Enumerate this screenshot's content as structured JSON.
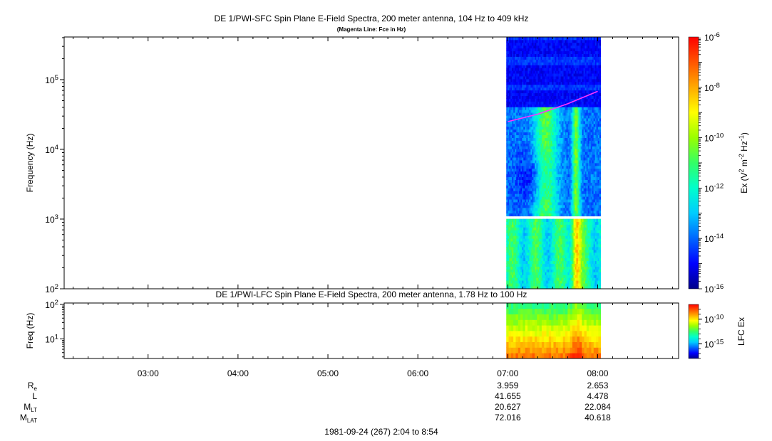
{
  "chart_data": [
    {
      "type": "heatmap",
      "title": "DE 1/PWI-SFC  Spin Plane E-Field Spectra, 200 meter antenna, 104 Hz to 409 kHz",
      "subtitle": "(Magenta Line: Fce in Hz)",
      "ylabel": "Frequency (Hz)",
      "yscale": "log",
      "ylim": [
        100,
        409000
      ],
      "ytick_values": [
        100,
        1000,
        10000,
        100000
      ],
      "ytick_labels": [
        "10^2",
        "10^3",
        "10^4",
        "10^5"
      ],
      "data_time_range": [
        "06:59",
        "08:02"
      ],
      "data_gap_frequency_hz": [
        1000,
        1150
      ],
      "colorbar": {
        "label": "Ex (V^2 m^-2 Hz^-1)",
        "scale": "log",
        "range": [
          1e-16,
          1e-06
        ],
        "tick_values": [
          1e-16,
          1e-14,
          1e-12,
          1e-10,
          1e-08,
          1e-06
        ],
        "tick_labels": [
          "10^-16",
          "10^-14",
          "10^-12",
          "10^-10",
          "10^-8",
          "10^-6"
        ]
      },
      "series": [
        {
          "name": "Fce",
          "color": "#ff33ff",
          "time": [
            "07:00",
            "07:20",
            "07:40",
            "08:00"
          ],
          "values": [
            25000,
            32000,
            45000,
            68000
          ]
        }
      ]
    },
    {
      "type": "heatmap",
      "title": "DE 1/PWI-LFC  Spin Plane E-Field Spectra, 200 meter antenna, 1.78 Hz to 100 Hz",
      "ylabel": "Freq (Hz)",
      "yscale": "log",
      "ylim": [
        2.7,
        110
      ],
      "ytick_values": [
        10,
        100
      ],
      "ytick_labels": [
        "10^1",
        "10^2"
      ],
      "data_time_range": [
        "06:59",
        "08:02"
      ],
      "colorbar": {
        "label": "LFC Ex",
        "scale": "log",
        "tick_values": [
          1e-15,
          1e-10
        ],
        "tick_labels": [
          "10^-15",
          "10^-10"
        ]
      }
    }
  ],
  "time_axis": {
    "tick_labels": [
      "03:00",
      "04:00",
      "05:00",
      "06:00",
      "07:00",
      "08:00"
    ],
    "date_label": "1981-09-24 (267) 2:04 to 8:54"
  },
  "ephemeris": {
    "rows": [
      {
        "label": "R",
        "sub": "e",
        "values": {
          "07:00": "3.959",
          "08:00": "2.653"
        }
      },
      {
        "label": "L",
        "sub": "",
        "values": {
          "07:00": "41.655",
          "08:00": "4.478"
        }
      },
      {
        "label": "M",
        "sub": "LT",
        "values": {
          "07:00": "20.627",
          "08:00": "22.084"
        }
      },
      {
        "label": "M",
        "sub": "LAT",
        "values": {
          "07:00": "72.016",
          "08:00": "40.618"
        }
      }
    ]
  },
  "colors": {
    "fce_line": "#ff33ff",
    "colormap": [
      "#00008b",
      "#0000ff",
      "#0066ff",
      "#00ccff",
      "#00ffcc",
      "#33ff66",
      "#99ff00",
      "#ffff00",
      "#ffaa00",
      "#ff5500",
      "#ff0000"
    ]
  }
}
